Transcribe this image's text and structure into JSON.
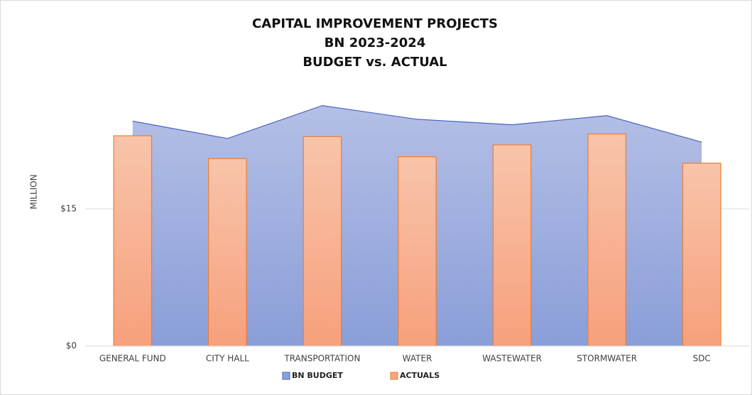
{
  "chart_data": {
    "type": "area+bar",
    "title": [
      "CAPITAL IMPROVEMENT PROJECTS",
      "BN 2023-2024",
      "BUDGET vs. ACTUAL"
    ],
    "y_label": "MILLION",
    "categories": [
      "GENERAL FUND",
      "CITY HALL",
      "TRANSPORTATION",
      "WATER",
      "WASTEWATER",
      "STORMWATER",
      "SDC"
    ],
    "series": [
      {
        "name": "BN BUDGET",
        "type": "area",
        "color": "#8ea0d8",
        "values": [
          24.6,
          22.7,
          26.3,
          24.8,
          24.2,
          25.2,
          22.3
        ]
      },
      {
        "name": "ACTUALS",
        "type": "bar",
        "color": "#f7a882",
        "values": [
          23.0,
          20.5,
          22.9,
          20.7,
          22.0,
          23.2,
          20.0
        ]
      }
    ],
    "ylim": [
      0,
      30
    ],
    "yticks": [
      {
        "value": 0,
        "label": "$0"
      },
      {
        "value": 15,
        "label": "$15"
      }
    ],
    "grid": true,
    "legend": "bottom"
  }
}
